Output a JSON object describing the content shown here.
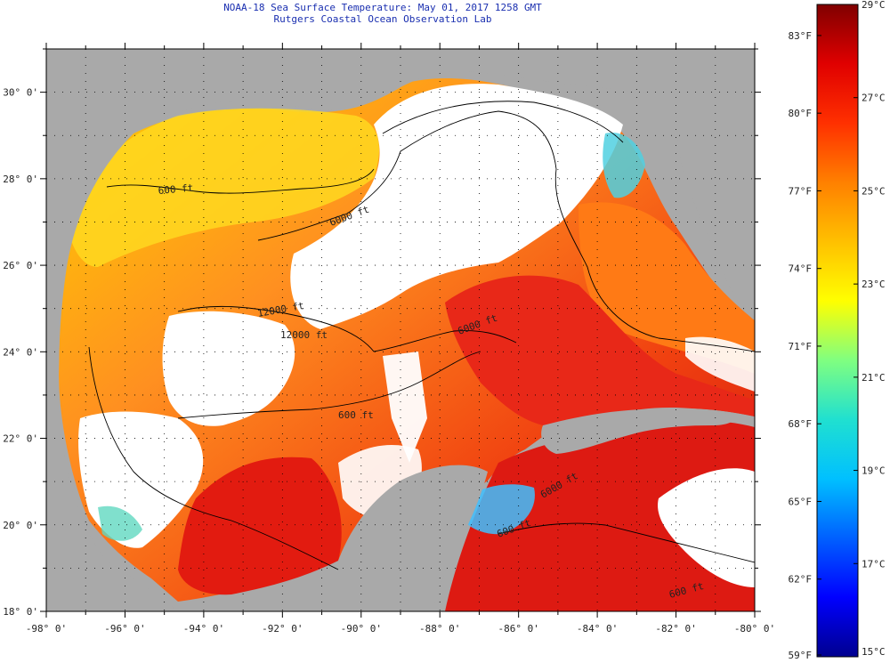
{
  "title": {
    "line1": "NOAA-18 Sea Surface Temperature:  May 01, 2017 1258 GMT",
    "line2": "Rutgers Coastal Ocean Observation Lab"
  },
  "map": {
    "lon_range": [
      -98,
      -80
    ],
    "lat_range": [
      18,
      31
    ],
    "lon_labels": [
      "-98° 0'",
      "-96° 0'",
      "-94° 0'",
      "-92° 0'",
      "-90° 0'",
      "-88° 0'",
      "-86° 0'",
      "-84° 0'",
      "-82° 0'",
      "-80° 0'"
    ],
    "lat_labels": [
      "30° 0'",
      "28° 0'",
      "26° 0'",
      "24° 0'",
      "22° 0'",
      "20° 0'",
      "18° 0'"
    ],
    "contour_labels": [
      "600 ft",
      "6000 ft",
      "12000 ft",
      "12000 ft",
      "6000 ft",
      "600 ft",
      "600 ft",
      "600 ft",
      "6000 ft"
    ],
    "colors": {
      "land": "#a9a9a9",
      "cloud": "#ffffff",
      "contour": "#000000",
      "graticule": "#000000"
    }
  },
  "colorbar": {
    "celsius_labels": [
      "29°C",
      "27°C",
      "25°C",
      "23°C",
      "21°C",
      "19°C",
      "17°C",
      "15°C"
    ],
    "fahrenheit_labels": [
      "83°F",
      "80°F",
      "77°F",
      "74°F",
      "71°F",
      "68°F",
      "65°F",
      "62°F",
      "59°F"
    ],
    "range_c": [
      15,
      29
    ],
    "gradient": [
      "#00008f",
      "#0000ff",
      "#0060ff",
      "#00c0ff",
      "#20e0d0",
      "#80ff80",
      "#ffff00",
      "#ffc000",
      "#ff8000",
      "#ff3000",
      "#e00000",
      "#800000"
    ]
  }
}
